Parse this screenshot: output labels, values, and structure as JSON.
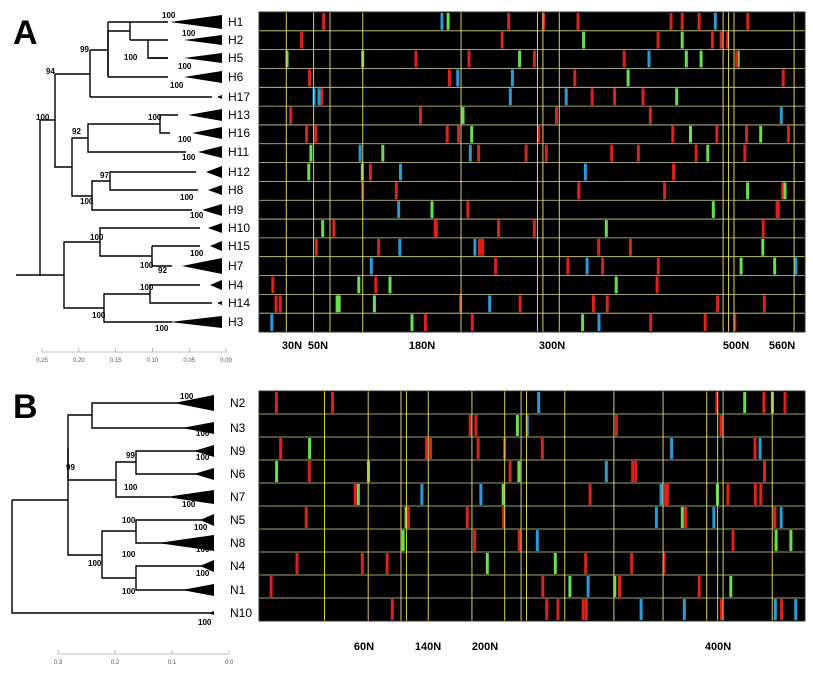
{
  "panels": [
    {
      "letter": "A",
      "tips": [
        {
          "label": "H1",
          "y": 22,
          "collapsed": true,
          "w": 52,
          "h": 14
        },
        {
          "label": "H2",
          "y": 40,
          "collapsed": true,
          "w": 38,
          "h": 10
        },
        {
          "label": "H5",
          "y": 58,
          "collapsed": true,
          "w": 38,
          "h": 10
        },
        {
          "label": "H6",
          "y": 77,
          "collapsed": true,
          "w": 38,
          "h": 12
        },
        {
          "label": "H17",
          "y": 97,
          "collapsed": false
        },
        {
          "label": "H13",
          "y": 115,
          "collapsed": true,
          "w": 34,
          "h": 12
        },
        {
          "label": "H16",
          "y": 133,
          "collapsed": true,
          "w": 30,
          "h": 12
        },
        {
          "label": "H11",
          "y": 152,
          "collapsed": true,
          "w": 24,
          "h": 12
        },
        {
          "label": "H12",
          "y": 172,
          "collapsed": true,
          "w": 16,
          "h": 12
        },
        {
          "label": "H8",
          "y": 190,
          "collapsed": true,
          "w": 14,
          "h": 10
        },
        {
          "label": "H9",
          "y": 210,
          "collapsed": true,
          "w": 20,
          "h": 12
        },
        {
          "label": "H10",
          "y": 228,
          "collapsed": true,
          "w": 14,
          "h": 10
        },
        {
          "label": "H15",
          "y": 246,
          "collapsed": true,
          "w": 12,
          "h": 10
        },
        {
          "label": "H7",
          "y": 266,
          "collapsed": true,
          "w": 40,
          "h": 16
        },
        {
          "label": "H4",
          "y": 285,
          "collapsed": true,
          "w": 12,
          "h": 10
        },
        {
          "label": "H14",
          "y": 303,
          "collapsed": false
        },
        {
          "label": "H3",
          "y": 322,
          "collapsed": true,
          "w": 52,
          "h": 12
        }
      ],
      "bootstraps": [
        {
          "text": "100",
          "x": 162,
          "y": 18
        },
        {
          "text": "100",
          "x": 182,
          "y": 36
        },
        {
          "text": "100",
          "x": 124,
          "y": 60
        },
        {
          "text": "100",
          "x": 178,
          "y": 69
        },
        {
          "text": "100",
          "x": 170,
          "y": 88
        },
        {
          "text": "99",
          "x": 80,
          "y": 52
        },
        {
          "text": "94",
          "x": 46,
          "y": 74
        },
        {
          "text": "100",
          "x": 36,
          "y": 120
        },
        {
          "text": "100",
          "x": 148,
          "y": 120
        },
        {
          "text": "100",
          "x": 178,
          "y": 142
        },
        {
          "text": "92",
          "x": 72,
          "y": 134
        },
        {
          "text": "100",
          "x": 182,
          "y": 160
        },
        {
          "text": "97",
          "x": 100,
          "y": 178
        },
        {
          "text": "100",
          "x": 180,
          "y": 200
        },
        {
          "text": "100",
          "x": 80,
          "y": 204
        },
        {
          "text": "100",
          "x": 190,
          "y": 218
        },
        {
          "text": "100",
          "x": 90,
          "y": 240
        },
        {
          "text": "100",
          "x": 190,
          "y": 256
        },
        {
          "text": "100",
          "x": 140,
          "y": 268
        },
        {
          "text": "92",
          "x": 158,
          "y": 273
        },
        {
          "text": "100",
          "x": 140,
          "y": 290
        },
        {
          "text": "100",
          "x": 92,
          "y": 318
        },
        {
          "text": "100",
          "x": 155,
          "y": 331
        }
      ],
      "axis_ticks": [
        "0.25",
        "0.20",
        "0.15",
        "0.10",
        "0.05",
        "0.00"
      ],
      "position_labels": [
        {
          "text": "30N",
          "x": 292
        },
        {
          "text": "50N",
          "x": 318
        },
        {
          "text": "180N",
          "x": 422
        },
        {
          "text": "300N",
          "x": 552
        },
        {
          "text": "500N",
          "x": 736
        },
        {
          "text": "560N",
          "x": 782
        }
      ]
    },
    {
      "letter": "B",
      "tips": [
        {
          "label": "N2",
          "y": 403,
          "collapsed": true,
          "w": 40,
          "h": 16
        },
        {
          "label": "N3",
          "y": 428,
          "collapsed": true,
          "w": 32,
          "h": 12
        },
        {
          "label": "N9",
          "y": 451,
          "collapsed": true,
          "w": 20,
          "h": 12
        },
        {
          "label": "N6",
          "y": 474,
          "collapsed": true,
          "w": 20,
          "h": 12
        },
        {
          "label": "N7",
          "y": 497,
          "collapsed": true,
          "w": 48,
          "h": 14
        },
        {
          "label": "N5",
          "y": 520,
          "collapsed": true,
          "w": 14,
          "h": 12
        },
        {
          "label": "N8",
          "y": 543,
          "collapsed": true,
          "w": 56,
          "h": 16
        },
        {
          "label": "N4",
          "y": 566,
          "collapsed": true,
          "w": 14,
          "h": 12
        },
        {
          "label": "N1",
          "y": 590,
          "collapsed": true,
          "w": 32,
          "h": 12
        },
        {
          "label": "N10",
          "y": 613,
          "collapsed": false
        }
      ],
      "bootstraps": [
        {
          "text": "100",
          "x": 180,
          "y": 399
        },
        {
          "text": "100",
          "x": 196,
          "y": 436
        },
        {
          "text": "99",
          "x": 126,
          "y": 458
        },
        {
          "text": "100",
          "x": 196,
          "y": 460
        },
        {
          "text": "99",
          "x": 66,
          "y": 470
        },
        {
          "text": "100",
          "x": 124,
          "y": 490
        },
        {
          "text": "100",
          "x": 182,
          "y": 507
        },
        {
          "text": "100",
          "x": 122,
          "y": 523
        },
        {
          "text": "100",
          "x": 194,
          "y": 530
        },
        {
          "text": "100",
          "x": 196,
          "y": 552
        },
        {
          "text": "100",
          "x": 122,
          "y": 557
        },
        {
          "text": "100",
          "x": 88,
          "y": 566
        },
        {
          "text": "100",
          "x": 196,
          "y": 576
        },
        {
          "text": "100",
          "x": 122,
          "y": 594
        },
        {
          "text": "100",
          "x": 198,
          "y": 625
        }
      ],
      "axis_ticks": [
        "0.3",
        "0.2",
        "0.1",
        "0.0"
      ],
      "position_labels": [
        {
          "text": "60N",
          "x": 364
        },
        {
          "text": "140N",
          "x": 428
        },
        {
          "text": "200N",
          "x": 485
        },
        {
          "text": "400N",
          "x": 718
        }
      ]
    }
  ],
  "colors": {
    "background": "#000000",
    "row_line": "#d8d890",
    "red": "#e0201c",
    "green": "#66e050",
    "blue": "#2a9ad8",
    "yellow": "#d8d060"
  }
}
